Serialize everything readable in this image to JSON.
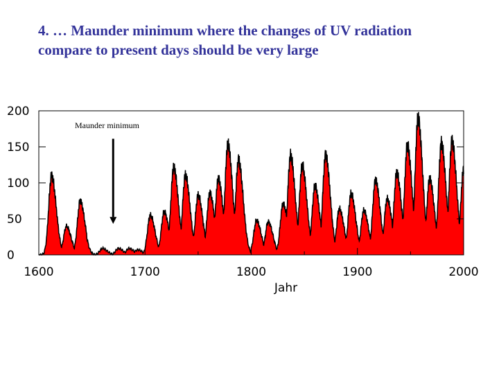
{
  "slide": {
    "title_line1": "4.  … Maunder minimum where the changes of UV radiation",
    "title_line2": "compare to present days should be very large"
  },
  "colors": {
    "title": "#33339a",
    "fill": "#ff0000",
    "line": "#000000"
  },
  "chart_data": {
    "type": "area",
    "title": "",
    "xlabel": "Jahr",
    "ylabel": "",
    "xlim": [
      1600,
      2000
    ],
    "ylim": [
      0,
      200
    ],
    "xticks": [
      "1600",
      "1700",
      "1800",
      "1900",
      "2000"
    ],
    "yticks": [
      "0",
      "50",
      "100",
      "150",
      "200"
    ],
    "annotation": {
      "text": "Maunder minimum",
      "arrow_x": 1670,
      "arrow_y_from": 165,
      "arrow_y_to": 45
    },
    "grid": false,
    "series": [
      {
        "peaks": [
          [
            1612,
            110
          ],
          [
            1626,
            40
          ],
          [
            1639,
            75
          ],
          [
            1660,
            10
          ],
          [
            1675,
            10
          ],
          [
            1685,
            10
          ],
          [
            1693,
            8
          ],
          [
            1705,
            55
          ],
          [
            1718,
            60
          ],
          [
            1727,
            122
          ],
          [
            1738,
            111
          ],
          [
            1750,
            83
          ],
          [
            1761,
            86
          ],
          [
            1769,
            106
          ],
          [
            1778,
            154
          ],
          [
            1788,
            132
          ],
          [
            1805,
            48
          ],
          [
            1816,
            46
          ],
          [
            1830,
            71
          ],
          [
            1837,
            138
          ],
          [
            1848,
            124
          ],
          [
            1860,
            96
          ],
          [
            1870,
            139
          ],
          [
            1883,
            64
          ],
          [
            1894,
            85
          ],
          [
            1906,
            62
          ],
          [
            1917,
            104
          ],
          [
            1928,
            78
          ],
          [
            1937,
            114
          ],
          [
            1947,
            152
          ],
          [
            1957,
            190
          ],
          [
            1968,
            106
          ],
          [
            1979,
            155
          ],
          [
            1989,
            158
          ],
          [
            2000,
            120
          ]
        ]
      }
    ]
  }
}
